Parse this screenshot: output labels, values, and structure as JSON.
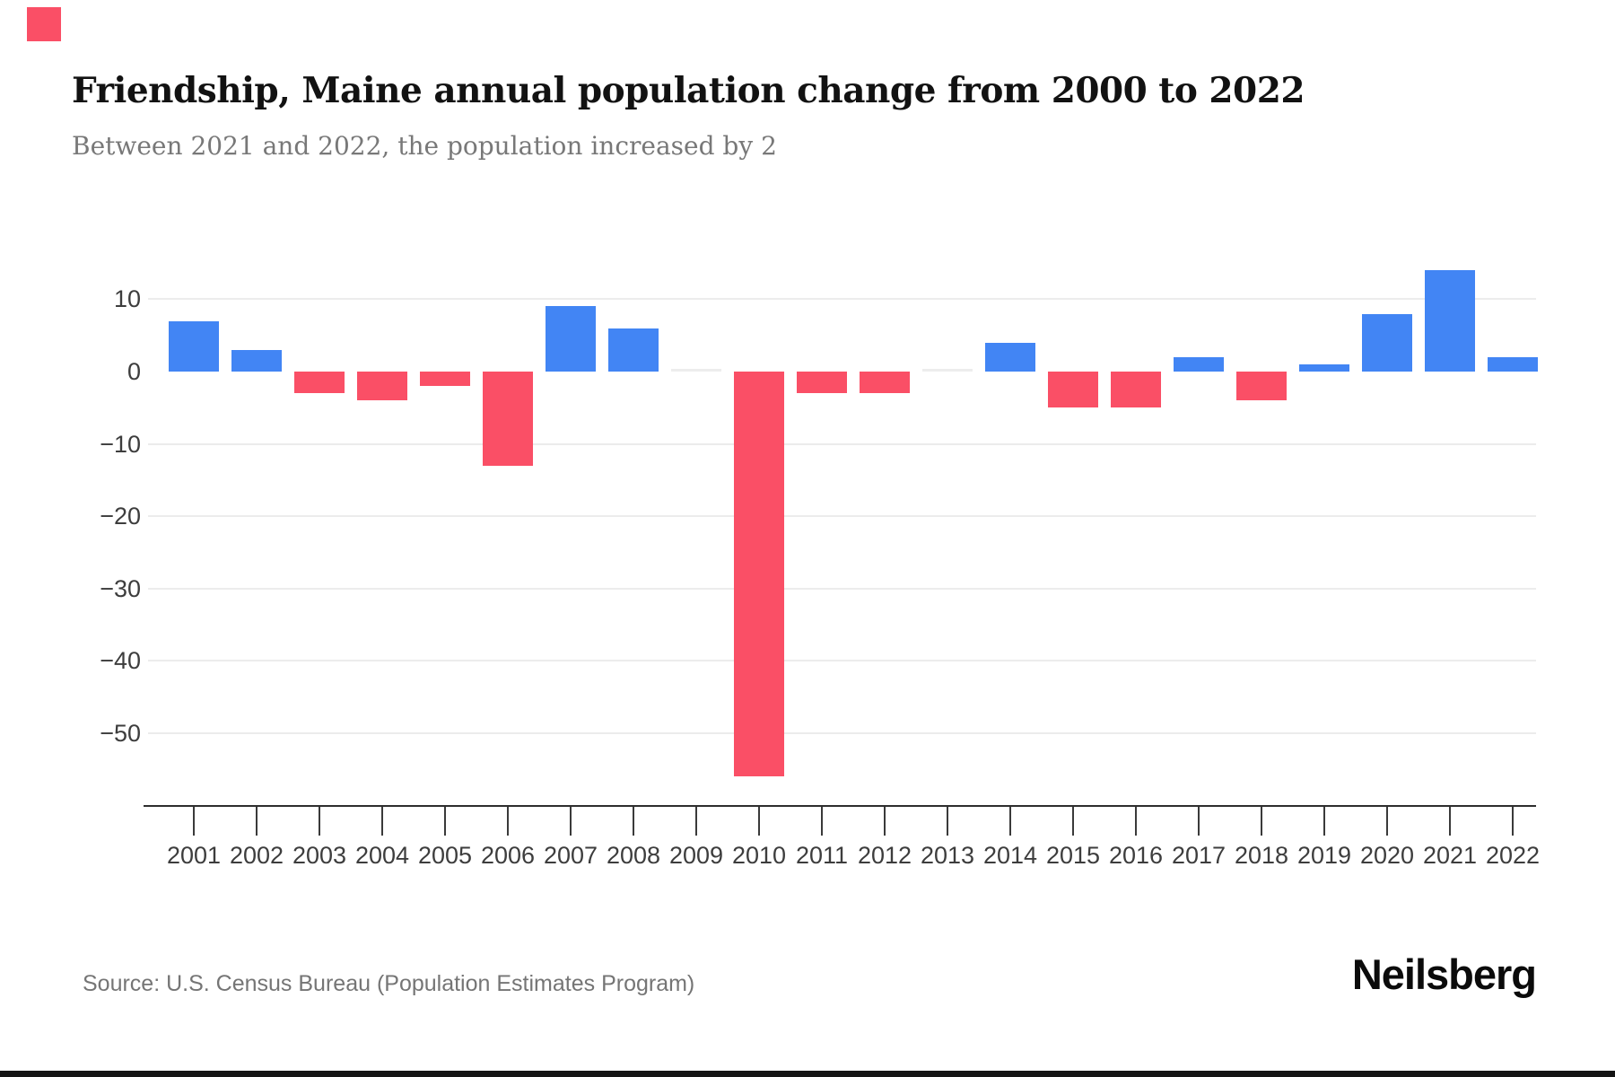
{
  "header": {
    "title": "Friendship, Maine annual population change from 2000 to 2022",
    "subtitle": "Between 2021 and 2022, the population increased by 2"
  },
  "chart_data": {
    "type": "bar",
    "title": "Friendship, Maine annual population change from 2000 to 2022",
    "categories": [
      "2001",
      "2002",
      "2003",
      "2004",
      "2005",
      "2006",
      "2007",
      "2008",
      "2009",
      "2010",
      "2011",
      "2012",
      "2013",
      "2014",
      "2015",
      "2016",
      "2017",
      "2018",
      "2019",
      "2020",
      "2021",
      "2022"
    ],
    "values": [
      7,
      3,
      -3,
      -4,
      -2,
      -13,
      9,
      6,
      0,
      -56,
      -3,
      -3,
      0,
      4,
      -5,
      -5,
      2,
      -4,
      1,
      8,
      14,
      2
    ],
    "xlabel": "",
    "ylabel": "",
    "ylim": [
      -58,
      16
    ],
    "yticks": [
      10,
      0,
      -10,
      -20,
      -30,
      -40,
      -50
    ],
    "ytick_labels": [
      "10",
      "0",
      "−10",
      "−20",
      "−30",
      "−40",
      "−50"
    ],
    "legend": "none",
    "grid": "horizontal light-gray lines, no line at zero",
    "colors": {
      "positive": "#4285f4",
      "negative": "#fa4f66",
      "zero": "#ededed",
      "gridline": "#ececec",
      "axis": "#2e2e2e",
      "tick_text": "#3d3d3d"
    }
  },
  "footer": {
    "source": "Source: U.S. Census Bureau (Population Estimates Program)",
    "brand": "Neilsberg"
  },
  "brand_mark_color": "#fa4f66"
}
